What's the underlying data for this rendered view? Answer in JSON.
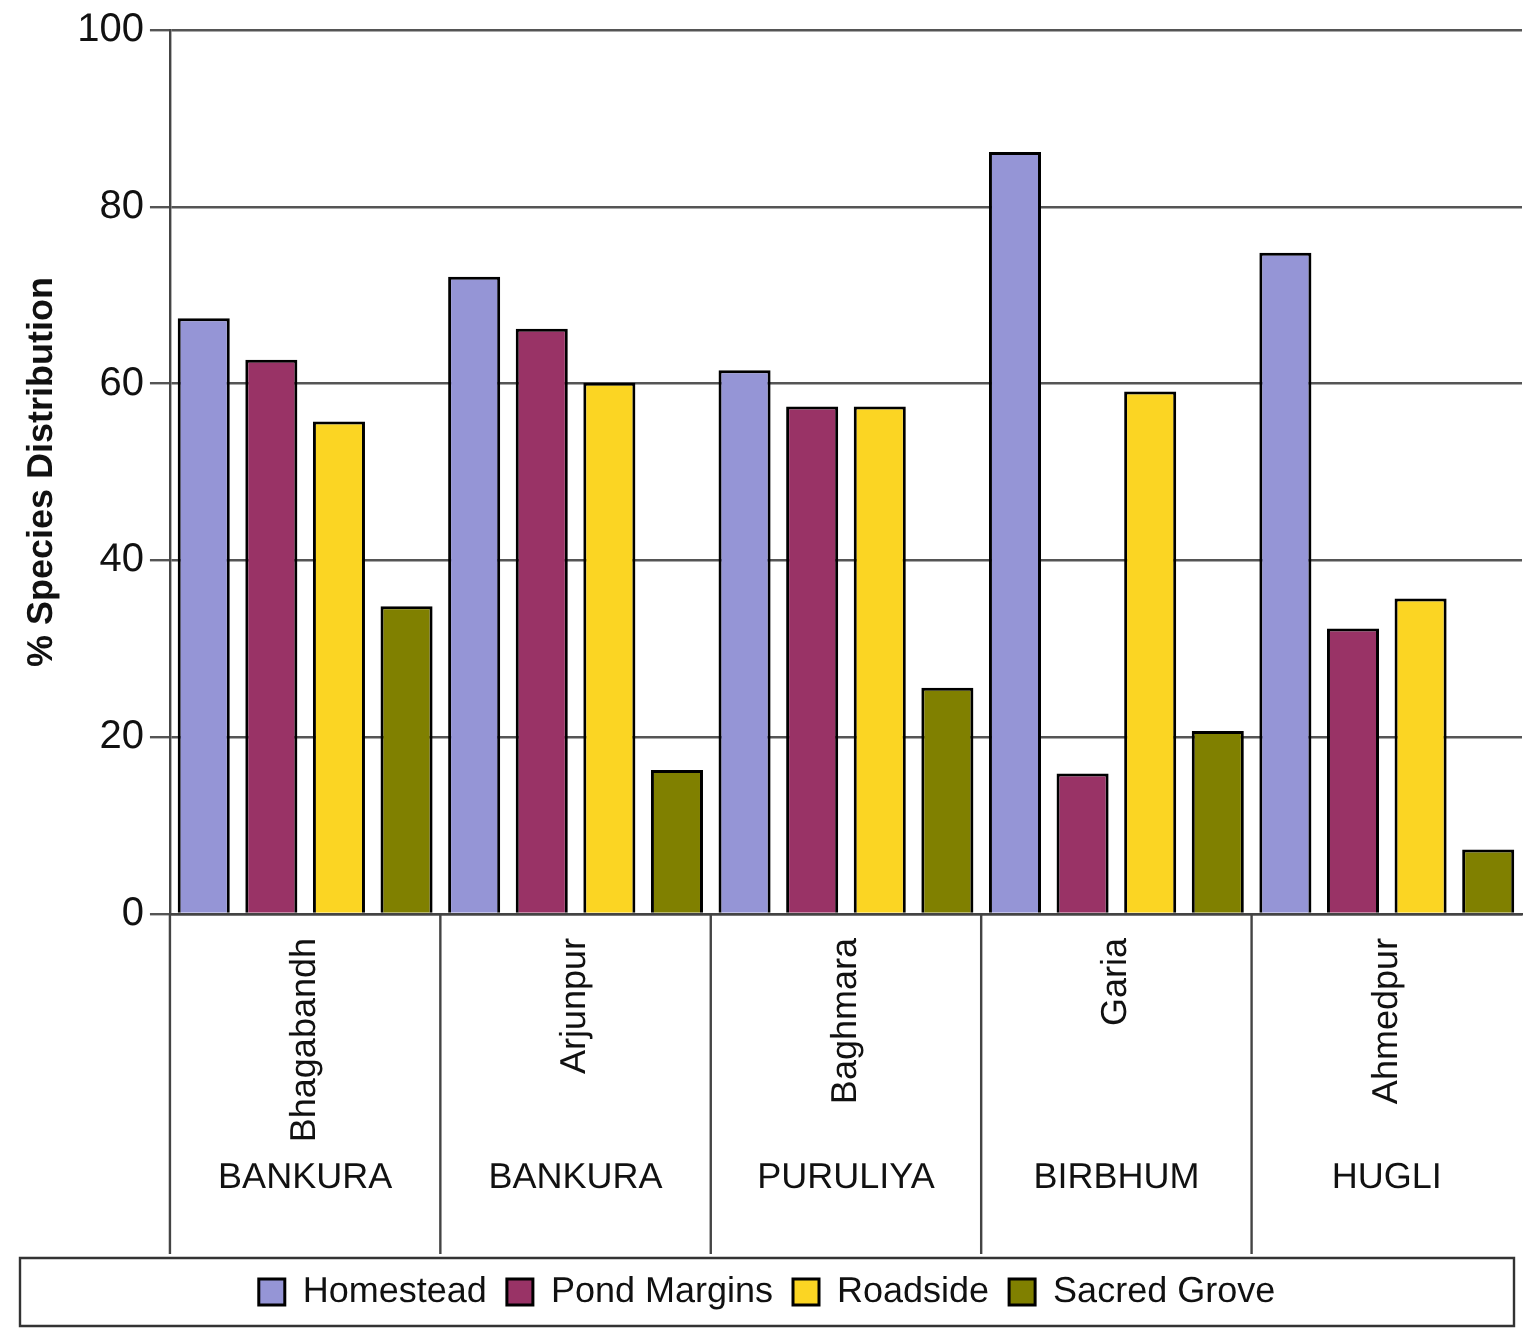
{
  "chart_data": {
    "type": "bar",
    "ylabel": "% Species Distribution",
    "categories": [
      "Bhagabandh",
      "Arjunpur",
      "Baghmara",
      "Garia",
      "Ahmedpur"
    ],
    "series": [
      {
        "name": "Homestead",
        "color": "#9595d6",
        "values": [
          67.4,
          72.1,
          61.5,
          86.2,
          74.8
        ]
      },
      {
        "name": "Pond Margins",
        "color": "#993366",
        "values": [
          62.7,
          66.2,
          57.4,
          15.9,
          32.3
        ]
      },
      {
        "name": "Roadside",
        "color": "#fbd523",
        "values": [
          55.7,
          60.1,
          57.4,
          59.1,
          35.7
        ]
      },
      {
        "name": "Sacred Grove",
        "color": "#808000",
        "values": [
          34.8,
          16.3,
          25.6,
          20.7,
          7.3
        ]
      }
    ],
    "annotations": [
      "BANKURA",
      "BANKURA",
      "PURULIYA",
      "BIRBHUM",
      "HUGLI"
    ],
    "ylim": [
      0,
      100
    ],
    "yticks": [
      0,
      20,
      40,
      60,
      80,
      100
    ],
    "grid": "y",
    "legend": "bottom"
  }
}
